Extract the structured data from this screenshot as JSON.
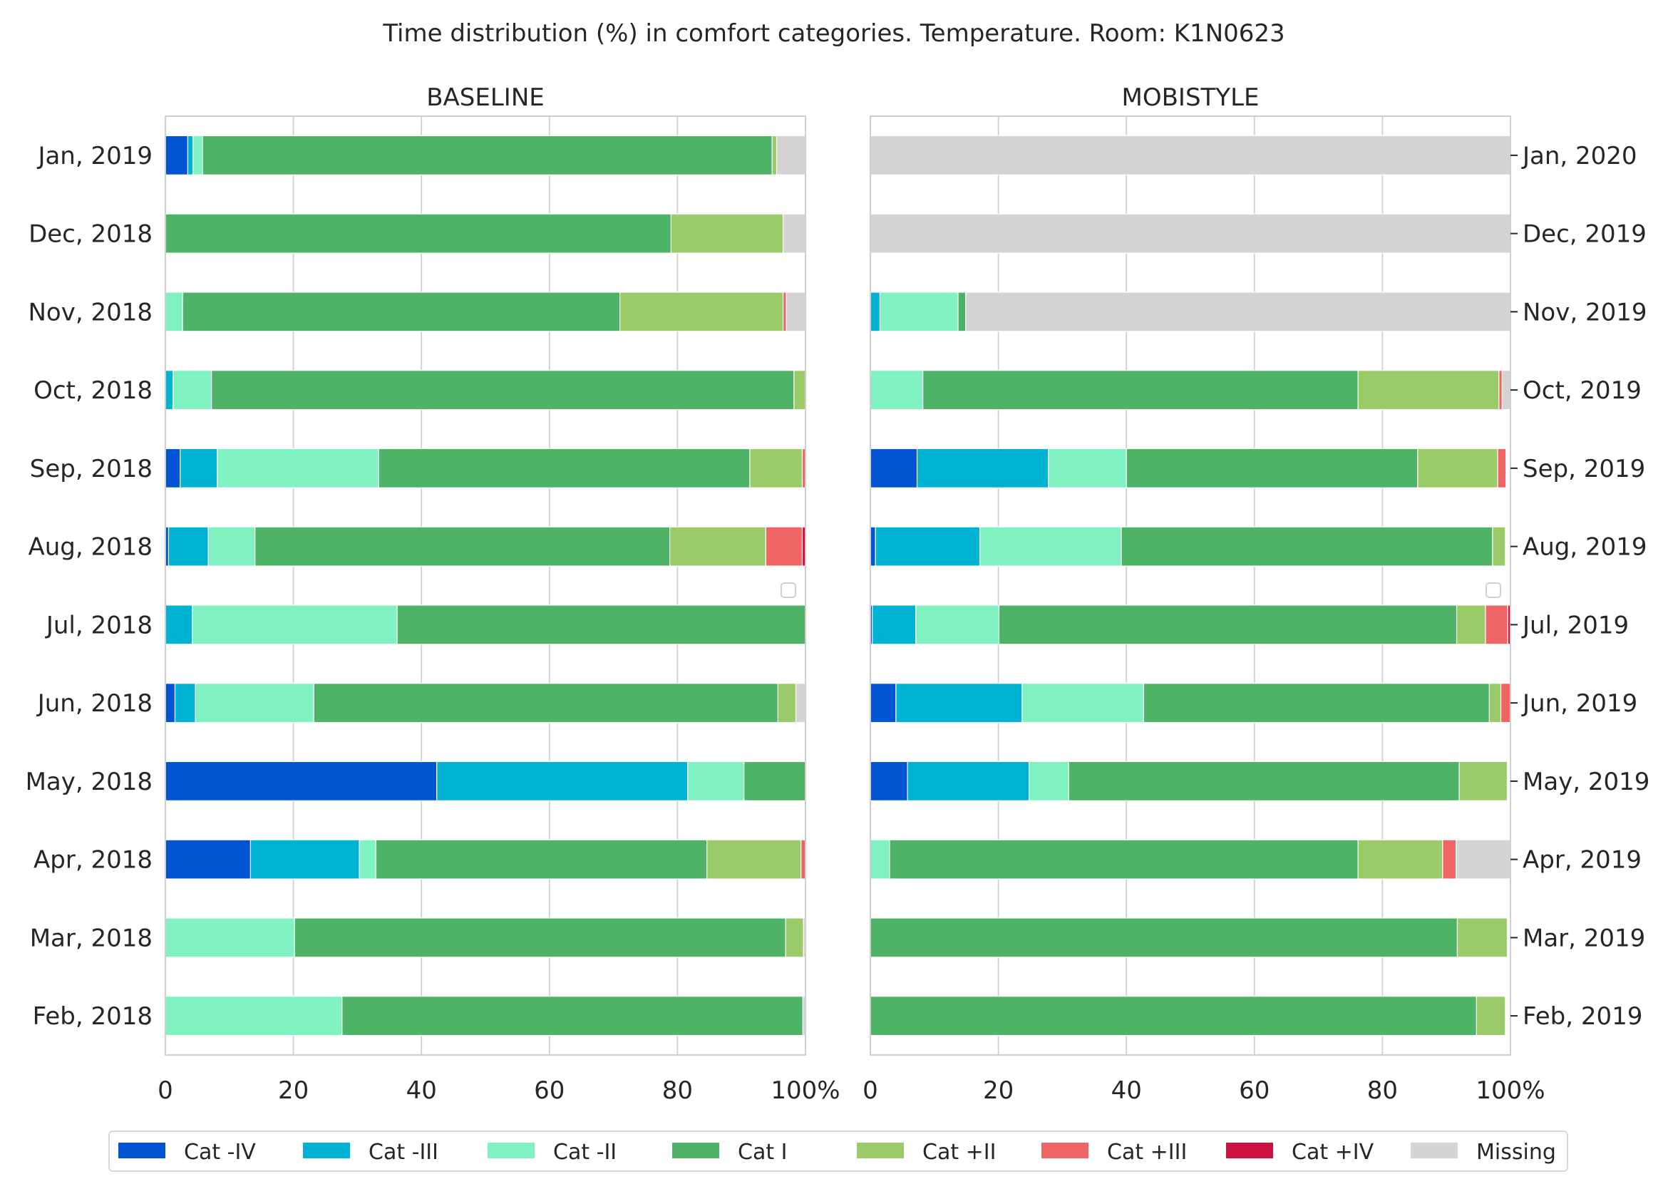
{
  "title": "Time distribution (%) in comfort categories. Temperature. Room: K1N0623",
  "legend": {
    "placement": "bottom-center",
    "items": [
      {
        "label": "Cat -IV",
        "color": "#0254d2"
      },
      {
        "label": "Cat -III",
        "color": "#00b3d2"
      },
      {
        "label": "Cat -II",
        "color": "#80f1c0"
      },
      {
        "label": "Cat I",
        "color": "#4eb366"
      },
      {
        "label": "Cat +II",
        "color": "#9bcb68"
      },
      {
        "label": "Cat +III",
        "color": "#ef6565"
      },
      {
        "label": "Cat +IV",
        "color": "#cc1040"
      },
      {
        "label": "Missing",
        "color": "#d4d4d4"
      }
    ]
  },
  "chart_data": [
    {
      "type": "bar",
      "orientation": "horizontal",
      "stacked": true,
      "title": "BASELINE",
      "xlim": [
        0,
        100
      ],
      "xticks": [
        "0",
        "20",
        "40",
        "60",
        "80",
        "100%"
      ],
      "grid": "vertical",
      "y_axis_side": "left",
      "categories": [
        "Jan, 2019",
        "Dec, 2018",
        "Nov, 2018",
        "Oct, 2018",
        "Sep, 2018",
        "Aug, 2018",
        "Jul, 2018",
        "Jun, 2018",
        "May, 2018",
        "Apr, 2018",
        "Mar, 2018",
        "Feb, 2018"
      ],
      "series": [
        {
          "name": "Cat -IV",
          "values": [
            3.5,
            0,
            0,
            0,
            2.3,
            0.5,
            0,
            1.5,
            42.4,
            13.3,
            0,
            0
          ]
        },
        {
          "name": "Cat -III",
          "values": [
            0.8,
            0,
            0,
            1.2,
            5.8,
            6.2,
            4.2,
            3.2,
            39.2,
            17.0,
            0,
            0
          ]
        },
        {
          "name": "Cat -II",
          "values": [
            1.5,
            0,
            2.7,
            6.0,
            25.2,
            7.3,
            32.0,
            18.5,
            8.8,
            2.6,
            20.2,
            27.6
          ]
        },
        {
          "name": "Cat I",
          "values": [
            89.0,
            79.0,
            68.3,
            91.0,
            58.0,
            64.8,
            63.8,
            72.5,
            9.6,
            51.7,
            76.7,
            72.0
          ]
        },
        {
          "name": "Cat +II",
          "values": [
            0.7,
            17.5,
            25.5,
            1.8,
            8.2,
            15.0,
            0,
            2.8,
            0,
            14.7,
            2.8,
            0
          ]
        },
        {
          "name": "Cat +III",
          "values": [
            0,
            0,
            0.5,
            0,
            0.5,
            5.7,
            0,
            0,
            0,
            0.7,
            0,
            0
          ]
        },
        {
          "name": "Cat +IV",
          "values": [
            0,
            0,
            0,
            0,
            0,
            0.5,
            0,
            0,
            0,
            0,
            0,
            0
          ]
        },
        {
          "name": "Missing",
          "values": [
            4.5,
            3.5,
            3.0,
            0,
            0,
            0,
            0,
            1.5,
            0,
            0,
            0.3,
            0.4
          ]
        }
      ]
    },
    {
      "type": "bar",
      "orientation": "horizontal",
      "stacked": true,
      "title": "MOBISTYLE",
      "xlim": [
        0,
        100
      ],
      "xticks": [
        "0",
        "20",
        "40",
        "60",
        "80",
        "100%"
      ],
      "grid": "vertical",
      "y_axis_side": "right",
      "categories": [
        "Jan, 2020",
        "Dec, 2019",
        "Nov, 2019",
        "Oct, 2019",
        "Sep, 2019",
        "Aug, 2019",
        "Jul, 2019",
        "Jun, 2019",
        "May, 2019",
        "Apr, 2019",
        "Mar, 2019",
        "Feb, 2019"
      ],
      "series": [
        {
          "name": "Cat -IV",
          "values": [
            0,
            0,
            0,
            0,
            7.3,
            0.8,
            0.3,
            4.0,
            5.8,
            0,
            0,
            0
          ]
        },
        {
          "name": "Cat -III",
          "values": [
            0,
            0,
            1.5,
            0,
            20.5,
            16.3,
            6.8,
            19.7,
            19.0,
            0,
            0,
            0
          ]
        },
        {
          "name": "Cat -II",
          "values": [
            0,
            0,
            12.2,
            8.2,
            12.2,
            22.1,
            13.0,
            19.0,
            6.2,
            3.0,
            0,
            0
          ]
        },
        {
          "name": "Cat I",
          "values": [
            0,
            0,
            1.2,
            68.0,
            45.5,
            58.0,
            71.5,
            54.0,
            61.0,
            73.2,
            91.7,
            94.7
          ]
        },
        {
          "name": "Cat +II",
          "values": [
            0,
            0,
            0,
            22.0,
            12.5,
            2.0,
            4.5,
            1.8,
            7.5,
            13.2,
            7.8,
            4.5
          ]
        },
        {
          "name": "Cat +III",
          "values": [
            0,
            0,
            0,
            0.5,
            1.3,
            0,
            3.5,
            1.5,
            0,
            2.1,
            0,
            0
          ]
        },
        {
          "name": "Cat +IV",
          "values": [
            0,
            0,
            0,
            0,
            0,
            0,
            0.4,
            0,
            0,
            0,
            0,
            0
          ]
        },
        {
          "name": "Missing",
          "values": [
            100,
            100,
            85.1,
            1.3,
            0,
            0,
            0,
            0,
            0,
            8.5,
            0,
            0
          ]
        }
      ]
    }
  ]
}
